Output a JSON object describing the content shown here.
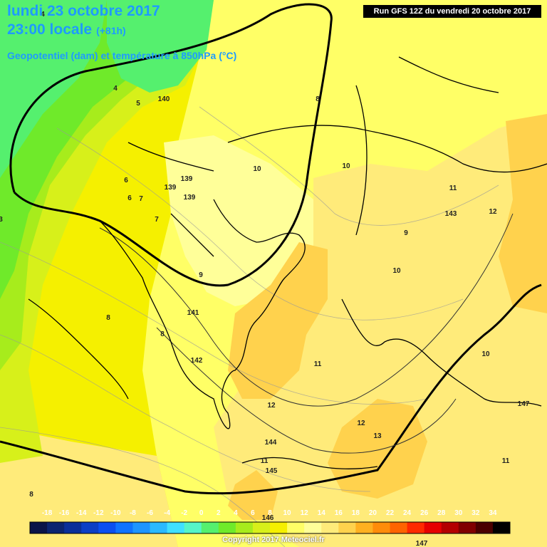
{
  "header": {
    "date": "lundi 23 octobre 2017",
    "time": "23:00 locale",
    "lead": "(+81h)",
    "parameter": "Geopotentiel (dam) et température à 850hPa (°C)",
    "run": "Run GFS 12Z du vendredi 20 octobre 2017"
  },
  "footer": {
    "copyright": "Copyright 2017 Meteociel.fr"
  },
  "colorbar": {
    "ticks": [
      "-18",
      "-16",
      "-14",
      "-12",
      "-10",
      "-8",
      "-6",
      "-4",
      "-2",
      "0",
      "2",
      "4",
      "6",
      "8",
      "10",
      "12",
      "14",
      "16",
      "18",
      "20",
      "22",
      "24",
      "26",
      "28",
      "30",
      "32",
      "34"
    ],
    "colors": [
      "#0a1448",
      "#0b2470",
      "#0a2f99",
      "#0c3fc5",
      "#0b4ff0",
      "#0f73ff",
      "#1e95ff",
      "#2ab9ff",
      "#3fe0ff",
      "#55f5c8",
      "#55f06e",
      "#6fea2a",
      "#a7ec1c",
      "#d7f01a",
      "#f5f000",
      "#ffff66",
      "#ffff99",
      "#ffeb7a",
      "#ffd24d",
      "#ffb020",
      "#ff8c0a",
      "#ff6400",
      "#ff2a00",
      "#e60000",
      "#b40000",
      "#800000",
      "#4a0000",
      "#000000"
    ]
  },
  "map_labels": [
    {
      "text": "140"
    },
    {
      "text": "139"
    },
    {
      "text": "139"
    },
    {
      "text": "139"
    },
    {
      "text": "141"
    },
    {
      "text": "142"
    },
    {
      "text": "143"
    },
    {
      "text": "144"
    },
    {
      "text": "145"
    },
    {
      "text": "146"
    },
    {
      "text": "147"
    },
    {
      "text": "147"
    },
    {
      "text": "5"
    },
    {
      "text": "6"
    },
    {
      "text": "6"
    },
    {
      "text": "7"
    },
    {
      "text": "7"
    },
    {
      "text": "8"
    },
    {
      "text": "8"
    },
    {
      "text": "8"
    },
    {
      "text": "8"
    },
    {
      "text": "9"
    },
    {
      "text": "9"
    },
    {
      "text": "10"
    },
    {
      "text": "10"
    },
    {
      "text": "10"
    },
    {
      "text": "10"
    },
    {
      "text": "11"
    },
    {
      "text": "11"
    },
    {
      "text": "11"
    },
    {
      "text": "11"
    },
    {
      "text": "12"
    },
    {
      "text": "12"
    },
    {
      "text": "12"
    },
    {
      "text": "13"
    },
    {
      "text": "4"
    },
    {
      "text": "3"
    },
    {
      "text": "4"
    }
  ]
}
